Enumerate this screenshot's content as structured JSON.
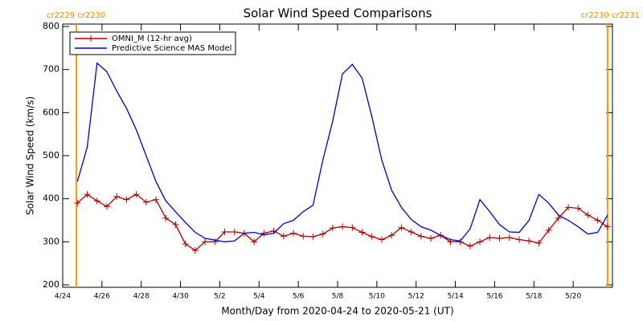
{
  "chart_data": {
    "type": "line",
    "title": "Solar Wind Speed Comparisons",
    "x_label": "Month/Day from 2020-04-24 to 2020-05-21 (UT)",
    "y_label": "Solar Wind Speed (km/s)",
    "xlim": [
      0,
      28
    ],
    "ylim": [
      200,
      800
    ],
    "yticks": [
      200,
      300,
      400,
      500,
      600,
      700,
      800
    ],
    "xticks": [
      {
        "value": 0,
        "label": "4/24"
      },
      {
        "value": 2,
        "label": "4/26"
      },
      {
        "value": 4,
        "label": "4/28"
      },
      {
        "value": 6,
        "label": "4/30"
      },
      {
        "value": 8,
        "label": "5/2"
      },
      {
        "value": 10,
        "label": "5/4"
      },
      {
        "value": 12,
        "label": "5/6"
      },
      {
        "value": 14,
        "label": "5/8"
      },
      {
        "value": 16,
        "label": "5/10"
      },
      {
        "value": 18,
        "label": "5/12"
      },
      {
        "value": 20,
        "label": "5/14"
      },
      {
        "value": 22,
        "label": "5/16"
      },
      {
        "value": 24,
        "label": "5/18"
      },
      {
        "value": 26,
        "label": "5/20"
      }
    ],
    "x": [
      0.75,
      1.25,
      1.75,
      2.25,
      2.75,
      3.25,
      3.75,
      4.25,
      4.75,
      5.25,
      5.75,
      6.25,
      6.75,
      7.25,
      7.75,
      8.25,
      8.75,
      9.25,
      9.75,
      10.25,
      10.75,
      11.25,
      11.75,
      12.25,
      12.75,
      13.25,
      13.75,
      14.25,
      14.75,
      15.25,
      15.75,
      16.25,
      16.75,
      17.25,
      17.75,
      18.25,
      18.75,
      19.25,
      19.75,
      20.25,
      20.75,
      21.25,
      21.75,
      22.25,
      22.75,
      23.25,
      23.75,
      24.25,
      24.75,
      25.25,
      25.75,
      26.25,
      26.75,
      27.25,
      27.75
    ],
    "legend": "upper left",
    "series": [
      {
        "name": "OMNI_M (12-hr avg)",
        "color": "#b00000",
        "marker": "+",
        "values": [
          390,
          410,
          395,
          382,
          405,
          398,
          410,
          392,
          398,
          355,
          340,
          295,
          280,
          300,
          300,
          323,
          323,
          320,
          300,
          320,
          325,
          313,
          320,
          313,
          312,
          318,
          332,
          335,
          333,
          322,
          312,
          305,
          315,
          333,
          323,
          313,
          308,
          315,
          300,
          300,
          290,
          300,
          310,
          308,
          310,
          305,
          302,
          297,
          327,
          355,
          380,
          378,
          362,
          350,
          335
        ]
      },
      {
        "name": "Predictive Science MAS Model",
        "color": "#0000cc",
        "values": [
          440,
          520,
          715,
          695,
          650,
          610,
          560,
          500,
          440,
          395,
          370,
          345,
          322,
          308,
          304,
          300,
          302,
          320,
          322,
          316,
          320,
          342,
          350,
          370,
          385,
          490,
          580,
          690,
          712,
          680,
          590,
          490,
          420,
          380,
          352,
          335,
          327,
          315,
          305,
          302,
          330,
          398,
          370,
          340,
          323,
          322,
          350,
          410,
          390,
          362,
          350,
          335,
          318,
          322,
          362
        ]
      }
    ],
    "annotations": [
      {
        "text": "cr2229 cr2230",
        "x": 0.7,
        "color": "#ff9900"
      },
      {
        "text": "cr2230 cr2231",
        "x": 27.75,
        "color": "#ff9900"
      }
    ]
  }
}
